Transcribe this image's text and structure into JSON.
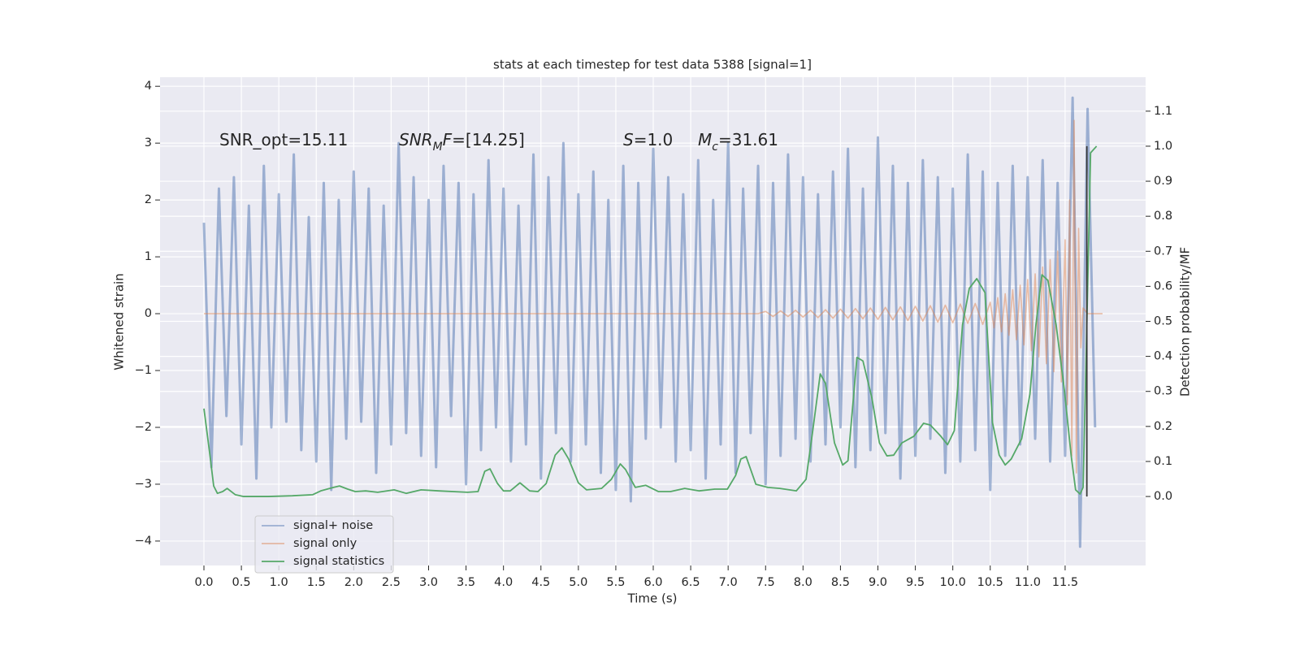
{
  "chart_data": {
    "type": "line",
    "title": "stats at each timestep for test data 5388 [signal=1]",
    "xlabel": "Time (s)",
    "ylabel": "Whitened strain",
    "y2label": "Detection probability/MF",
    "xlim": [
      -0.586,
      12.575
    ],
    "ylim": [
      -4.43,
      4.16
    ],
    "y2lim": [
      -0.197,
      1.197
    ],
    "xticks": [
      {
        "value": 0,
        "label": "0.0"
      },
      0.5,
      {
        "value": 1,
        "label": "1.0"
      },
      1.5,
      {
        "value": 2,
        "label": "2.0"
      },
      2.5,
      {
        "value": 3,
        "label": "3.0"
      },
      3.5,
      {
        "value": 4,
        "label": "4.0"
      },
      4.5,
      {
        "value": 5,
        "label": "5.0"
      },
      5.5,
      {
        "value": 6,
        "label": "6.0"
      },
      6.5,
      {
        "value": 7,
        "label": "7.0"
      },
      7.5,
      {
        "value": 8,
        "label": "8.0"
      },
      8.5,
      {
        "value": 9,
        "label": "9.0"
      },
      9.5,
      {
        "value": 10,
        "label": "10.0"
      },
      10.5,
      {
        "value": 11,
        "label": "11.0"
      },
      11.5
    ],
    "yticks": [
      {
        "value": -4,
        "label": "−4"
      },
      {
        "value": -3,
        "label": "−3"
      },
      {
        "value": -2,
        "label": "−2"
      },
      {
        "value": -1,
        "label": "−1"
      },
      0,
      1,
      2,
      3,
      4
    ],
    "y2ticks": [
      {
        "value": 0,
        "label": "0.0"
      },
      0.1,
      0.2,
      0.3,
      0.4,
      0.5,
      0.6,
      0.7,
      0.8,
      0.9,
      {
        "value": 1,
        "label": "1.0"
      },
      1.1
    ],
    "grid": true,
    "legend": "lower left",
    "annotations": [
      [
        {
          "text": "SNR_opt=15.11"
        }
      ],
      [
        {
          "text": "SNR",
          "italic": true
        },
        {
          "text": "M",
          "italic": true,
          "sub": true
        },
        {
          "text": "F",
          "italic": true
        },
        {
          "text": "=[14.25]"
        }
      ],
      [
        {
          "text": "S",
          "italic": true
        },
        {
          "text": "=1.0"
        }
      ],
      [
        {
          "text": "M",
          "italic": true
        },
        {
          "text": "c",
          "italic": true,
          "sub": true
        },
        {
          "text": "=31.61"
        }
      ]
    ],
    "series": [
      {
        "name": "signal+ noise",
        "color": "#4c72b0",
        "opacity": 0.5,
        "x": [
          0,
          0.1,
          0.2,
          0.3,
          0.4,
          0.5,
          0.6,
          0.7,
          0.8,
          0.9,
          1,
          1.1,
          1.2,
          1.3,
          1.4,
          1.5,
          1.6,
          1.7,
          1.8,
          1.9,
          2,
          2.1,
          2.2,
          2.3,
          2.4,
          2.5,
          2.6,
          2.7,
          2.8,
          2.9,
          3,
          3.1,
          3.2,
          3.3,
          3.4,
          3.5,
          3.6,
          3.7,
          3.8,
          3.9,
          4,
          4.1,
          4.2,
          4.3,
          4.4,
          4.5,
          4.6,
          4.7,
          4.8,
          4.9,
          5,
          5.1,
          5.2,
          5.3,
          5.4,
          5.5,
          5.6,
          5.7,
          5.8,
          5.9,
          6,
          6.1,
          6.2,
          6.3,
          6.4,
          6.5,
          6.6,
          6.7,
          6.8,
          6.9,
          7,
          7.1,
          7.2,
          7.3,
          7.4,
          7.5,
          7.6,
          7.7,
          7.8,
          7.9,
          8,
          8.1,
          8.2,
          8.3,
          8.4,
          8.5,
          8.6,
          8.7,
          8.8,
          8.9,
          9,
          9.1,
          9.2,
          9.3,
          9.4,
          9.5,
          9.6,
          9.7,
          9.8,
          9.9,
          10,
          10.1,
          10.2,
          10.3,
          10.4,
          10.5,
          10.6,
          10.7,
          10.8,
          10.9,
          11,
          11.1,
          11.2,
          11.3,
          11.4,
          11.5,
          11.6,
          11.7,
          11.8,
          11.9
        ],
        "values": [
          1.6,
          -2.7,
          2.2,
          -1.8,
          2.4,
          -2.3,
          1.9,
          -2.9,
          2.6,
          -2.0,
          2.1,
          -1.9,
          2.8,
          -2.4,
          1.7,
          -2.6,
          2.3,
          -3.1,
          2.0,
          -2.2,
          2.5,
          -1.9,
          2.2,
          -2.8,
          1.9,
          -2.3,
          3.0,
          -2.1,
          2.4,
          -2.5,
          2.0,
          -2.7,
          2.6,
          -1.8,
          2.3,
          -3.0,
          2.1,
          -2.4,
          2.7,
          -2.0,
          2.2,
          -2.6,
          1.9,
          -2.3,
          2.8,
          -2.9,
          2.4,
          -2.1,
          3.0,
          -2.6,
          2.1,
          -2.3,
          2.5,
          -2.8,
          2.0,
          -3.1,
          2.6,
          -3.3,
          2.3,
          -2.2,
          2.9,
          -2.0,
          2.4,
          -2.6,
          2.1,
          -2.4,
          2.7,
          -2.9,
          2.0,
          -2.3,
          3.0,
          -2.8,
          2.2,
          -2.1,
          2.6,
          -3.0,
          2.3,
          -2.5,
          2.8,
          -2.2,
          2.4,
          -2.6,
          2.1,
          -2.3,
          2.5,
          -2.0,
          2.9,
          -2.7,
          2.2,
          -2.4,
          3.1,
          -2.1,
          2.6,
          -2.9,
          2.3,
          -2.5,
          2.7,
          -2.2,
          2.4,
          -2.8,
          2.2,
          -2.6,
          2.8,
          -2.4,
          2.5,
          -3.1,
          2.3,
          -2.5,
          2.6,
          -2.3,
          2.4,
          -2.2,
          2.7,
          -2.6,
          2.3,
          -2.5,
          3.8,
          -4.1,
          3.6,
          -2.0
        ]
      },
      {
        "name": "signal only",
        "color": "#dd8452",
        "opacity": 0.5,
        "x": [
          0,
          7.4,
          7.5,
          7.6,
          7.7,
          7.8,
          7.9,
          8,
          8.1,
          8.2,
          8.3,
          8.4,
          8.5,
          8.6,
          8.7,
          8.8,
          8.9,
          9,
          9.1,
          9.2,
          9.3,
          9.4,
          9.5,
          9.6,
          9.7,
          9.8,
          9.9,
          10,
          10.1,
          10.2,
          10.3,
          10.4,
          10.5,
          10.55,
          10.6,
          10.65,
          10.7,
          10.75,
          10.8,
          10.85,
          10.9,
          10.95,
          11,
          11.05,
          11.1,
          11.15,
          11.2,
          11.25,
          11.3,
          11.35,
          11.4,
          11.45,
          11.5,
          11.53,
          11.56,
          11.59,
          11.62,
          11.65,
          11.68,
          11.71,
          11.74,
          11.8,
          12
        ],
        "values": [
          0,
          0,
          0.04,
          -0.05,
          0.05,
          -0.05,
          0.06,
          -0.06,
          0.06,
          -0.07,
          0.07,
          -0.08,
          0.08,
          -0.08,
          0.09,
          -0.09,
          0.1,
          -0.1,
          0.11,
          -0.11,
          0.12,
          -0.12,
          0.13,
          -0.13,
          0.14,
          -0.15,
          0.15,
          -0.16,
          0.17,
          -0.17,
          0.18,
          -0.19,
          0.2,
          -0.25,
          0.28,
          -0.32,
          0.35,
          -0.38,
          0.42,
          -0.46,
          0.5,
          -0.55,
          0.6,
          -0.65,
          0.7,
          -0.76,
          0.82,
          -0.88,
          0.95,
          -1.02,
          1.1,
          -1.2,
          1.3,
          -1.6,
          2.0,
          -2.5,
          3.4,
          -2.8,
          1.5,
          -0.6,
          0.1,
          0,
          0
        ]
      },
      {
        "name": "signal statistics",
        "color": "#55a868",
        "opacity": 1,
        "axis": "y2",
        "x": [
          0,
          0.08,
          0.13,
          0.18,
          0.25,
          0.31,
          0.42,
          0.53,
          0.86,
          1.18,
          1.45,
          1.56,
          1.73,
          1.81,
          1.92,
          2.02,
          2.16,
          2.32,
          2.54,
          2.7,
          2.9,
          3.14,
          3.52,
          3.66,
          3.75,
          3.82,
          3.92,
          4.0,
          4.09,
          4.22,
          4.35,
          4.46,
          4.57,
          4.69,
          4.78,
          4.87,
          5.0,
          5.11,
          5.31,
          5.44,
          5.56,
          5.63,
          5.76,
          5.9,
          6.07,
          6.23,
          6.42,
          6.61,
          6.82,
          6.99,
          7.1,
          7.17,
          7.24,
          7.37,
          7.53,
          7.69,
          7.91,
          8.04,
          8.13,
          8.23,
          8.3,
          8.42,
          8.53,
          8.6,
          8.72,
          8.8,
          8.92,
          9.02,
          9.12,
          9.21,
          9.32,
          9.48,
          9.61,
          9.7,
          9.84,
          9.93,
          10.02,
          10.13,
          10.22,
          10.32,
          10.43,
          10.53,
          10.62,
          10.7,
          10.78,
          10.92,
          11.03,
          11.11,
          11.19,
          11.27,
          11.38,
          11.49,
          11.58,
          11.64,
          11.7,
          11.74,
          11.78,
          11.84,
          11.92
        ],
        "values": [
          0.251,
          0.118,
          0.03,
          0.009,
          0.014,
          0.023,
          0.005,
          0,
          0,
          0.002,
          0.005,
          0.016,
          0.026,
          0.03,
          0.021,
          0.014,
          0.016,
          0.012,
          0.019,
          0.009,
          0.019,
          0.016,
          0.012,
          0.014,
          0.072,
          0.079,
          0.037,
          0.016,
          0.016,
          0.039,
          0.016,
          0.014,
          0.037,
          0.118,
          0.139,
          0.107,
          0.039,
          0.019,
          0.023,
          0.049,
          0.093,
          0.077,
          0.026,
          0.032,
          0.014,
          0.014,
          0.023,
          0.016,
          0.021,
          0.021,
          0.06,
          0.107,
          0.114,
          0.035,
          0.026,
          0.023,
          0.016,
          0.049,
          0.188,
          0.35,
          0.323,
          0.153,
          0.09,
          0.102,
          0.397,
          0.387,
          0.281,
          0.153,
          0.116,
          0.118,
          0.153,
          0.172,
          0.209,
          0.204,
          0.172,
          0.148,
          0.188,
          0.49,
          0.594,
          0.622,
          0.582,
          0.211,
          0.118,
          0.09,
          0.107,
          0.165,
          0.292,
          0.49,
          0.633,
          0.617,
          0.49,
          0.304,
          0.118,
          0.019,
          0.007,
          0.026,
          0.397,
          0.981,
          1.0
        ]
      }
    ],
    "vlines": [
      {
        "x": 11.79,
        "ymin": 0,
        "ymax": 1,
        "axis": "y2",
        "color": "#3a3a3a"
      }
    ]
  }
}
